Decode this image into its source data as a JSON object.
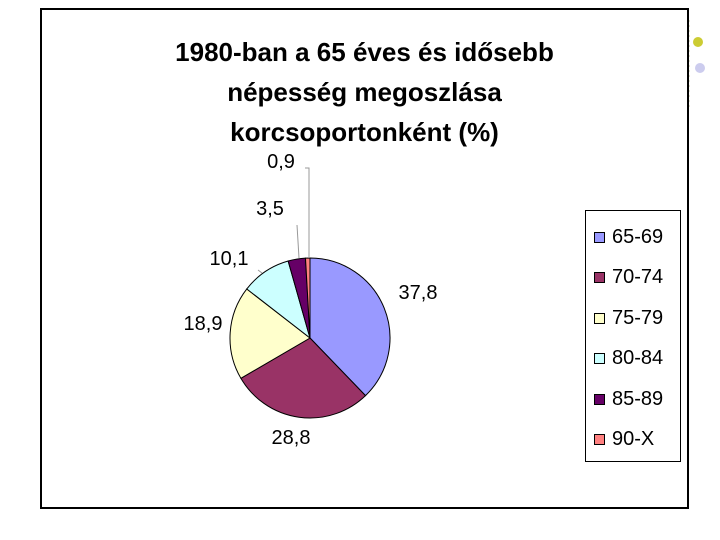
{
  "chart_data": {
    "type": "pie",
    "title": "1980-ban a 65 éves és idősebb népesség megoszlása korcsoportonként (%)",
    "title_lines": [
      "1980-ban a 65 éves és idősebb",
      "népesség megoszlása",
      "korcsoportonként (%)"
    ],
    "categories": [
      "65-69",
      "70-74",
      "75-79",
      "80-84",
      "85-89",
      "90-X"
    ],
    "values": [
      37.8,
      28.8,
      18.9,
      10.1,
      3.5,
      0.9
    ],
    "data_labels": [
      "37,8",
      "28,8",
      "18,9",
      "10,1",
      "3,5",
      "0,9"
    ],
    "colors": [
      "#9999ff",
      "#993366",
      "#ffffcc",
      "#ccffff",
      "#660066",
      "#ff8080"
    ],
    "legend_position": "right"
  }
}
